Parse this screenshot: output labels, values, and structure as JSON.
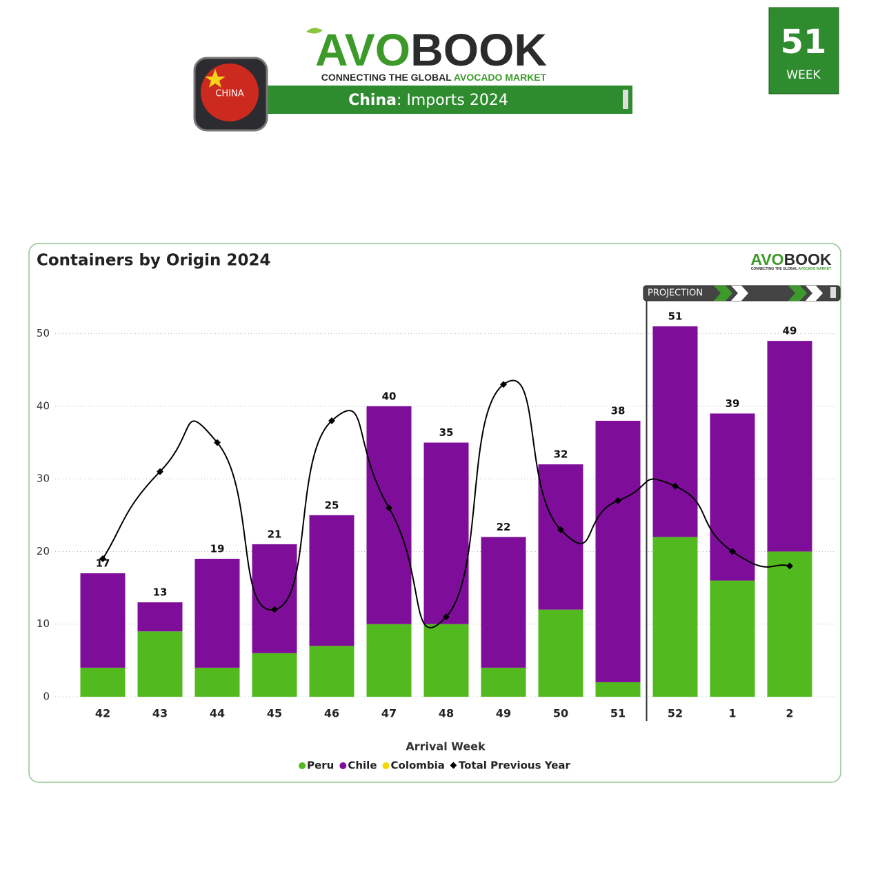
{
  "header": {
    "logo": {
      "part1": "AVO",
      "part2": "BOOK"
    },
    "tagline": {
      "part1": "CONNECTING THE GLOBAL ",
      "part2": "AVOCADO MARKET"
    },
    "flag_label": "CHINA",
    "banner": {
      "country": "China",
      "rest": ": Imports 2024"
    },
    "week": {
      "number": "51",
      "label": "WEEK"
    }
  },
  "chart_data": {
    "type": "bar",
    "stacked": true,
    "title": "Containers by Origin 2024",
    "annotation": "PROJECTION",
    "x_label": "Arrival Week",
    "categories": [
      "42",
      "43",
      "44",
      "45",
      "46",
      "47",
      "48",
      "49",
      "50",
      "51",
      "52",
      "1",
      "2"
    ],
    "series": [
      {
        "name": "Peru",
        "color": "#52b91e",
        "values": [
          4,
          9,
          4,
          6,
          7,
          10,
          10,
          4,
          12,
          2,
          22,
          16,
          20
        ]
      },
      {
        "name": "Chile",
        "color": "#7e0e99",
        "values": [
          13,
          4,
          15,
          15,
          18,
          30,
          25,
          18,
          20,
          36,
          29,
          23,
          29
        ]
      },
      {
        "name": "Colombia",
        "color": "#f5d800",
        "values": [
          0,
          0,
          0,
          0,
          0,
          0,
          0,
          0,
          0,
          0,
          0,
          0,
          0
        ]
      },
      {
        "name": "Total Previous Year",
        "type": "line",
        "color": "#000000",
        "values": [
          19,
          31,
          35,
          12,
          38,
          26,
          11,
          43,
          23,
          27,
          29,
          20,
          18
        ]
      }
    ],
    "totals": [
      17,
      13,
      19,
      21,
      25,
      40,
      35,
      22,
      32,
      38,
      51,
      39,
      49
    ],
    "ylim": [
      0,
      55
    ],
    "yticks": [
      0,
      10,
      20,
      30,
      40,
      50
    ],
    "grid": true
  }
}
